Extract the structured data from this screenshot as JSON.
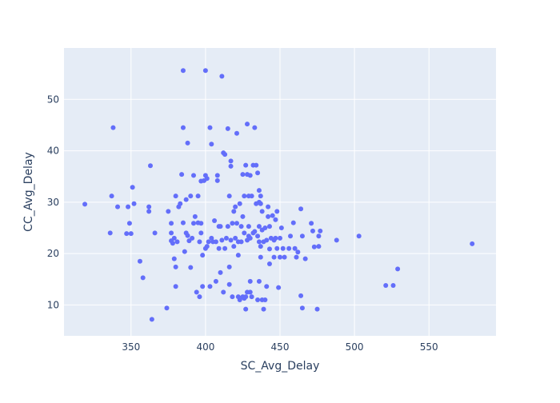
{
  "chart_data": {
    "type": "scatter",
    "title": "",
    "xlabel": "SC_Avg_Delay",
    "ylabel": "CC_Avg_Delay",
    "xlim": [
      305,
      595
    ],
    "ylim": [
      4,
      60
    ],
    "xticks": [
      350,
      400,
      450,
      500,
      550
    ],
    "yticks": [
      10,
      20,
      30,
      40,
      50
    ],
    "grid": true,
    "colors": {
      "marker": "#636efa",
      "plot_bg": "#e5ecf6",
      "grid": "#ffffff",
      "text": "#2a3f5f"
    },
    "points": [
      [
        319,
        29.6
      ],
      [
        336,
        24.0
      ],
      [
        337,
        31.2
      ],
      [
        338,
        44.5
      ],
      [
        341,
        29.1
      ],
      [
        347,
        23.9
      ],
      [
        348,
        29.1
      ],
      [
        349,
        25.9
      ],
      [
        350,
        23.9
      ],
      [
        351,
        32.9
      ],
      [
        352,
        29.7
      ],
      [
        356,
        18.5
      ],
      [
        358,
        15.3
      ],
      [
        362,
        29.1
      ],
      [
        362,
        28.2
      ],
      [
        363,
        37.1
      ],
      [
        364,
        7.2
      ],
      [
        366,
        24.0
      ],
      [
        374,
        9.4
      ],
      [
        375,
        28.2
      ],
      [
        377,
        25.9
      ],
      [
        377,
        24.0
      ],
      [
        377,
        22.5
      ],
      [
        378,
        22.0
      ],
      [
        379,
        19.0
      ],
      [
        379,
        23.0
      ],
      [
        380,
        31.2
      ],
      [
        380,
        13.6
      ],
      [
        380,
        17.4
      ],
      [
        381,
        22.3
      ],
      [
        382,
        29.1
      ],
      [
        383,
        29.7
      ],
      [
        384,
        35.4
      ],
      [
        385,
        44.5
      ],
      [
        385,
        26.0
      ],
      [
        385,
        55.6
      ],
      [
        386,
        20.4
      ],
      [
        387,
        24.0
      ],
      [
        387,
        30.5
      ],
      [
        388,
        23.5
      ],
      [
        388,
        41.5
      ],
      [
        389,
        22.5
      ],
      [
        390,
        17.3
      ],
      [
        390,
        31.2
      ],
      [
        391,
        23.0
      ],
      [
        392,
        25.9
      ],
      [
        392,
        35.2
      ],
      [
        393,
        27.2
      ],
      [
        394,
        12.5
      ],
      [
        395,
        31.2
      ],
      [
        395,
        26.0
      ],
      [
        396,
        11.6
      ],
      [
        396,
        22.3
      ],
      [
        397,
        34.1
      ],
      [
        397,
        24.0
      ],
      [
        397,
        25.9
      ],
      [
        398,
        13.6
      ],
      [
        398,
        19.7
      ],
      [
        399,
        34.2
      ],
      [
        400,
        35.2
      ],
      [
        400,
        55.6
      ],
      [
        400,
        21.0
      ],
      [
        401,
        34.6
      ],
      [
        401,
        21.4
      ],
      [
        402,
        22.3
      ],
      [
        403,
        44.5
      ],
      [
        403,
        13.6
      ],
      [
        404,
        41.3
      ],
      [
        404,
        23.0
      ],
      [
        405,
        22.3
      ],
      [
        406,
        26.4
      ],
      [
        407,
        14.6
      ],
      [
        407,
        22.3
      ],
      [
        408,
        35.2
      ],
      [
        408,
        34.2
      ],
      [
        409,
        25.3
      ],
      [
        409,
        21.0
      ],
      [
        410,
        25.3
      ],
      [
        410,
        16.3
      ],
      [
        411,
        54.5
      ],
      [
        411,
        22.6
      ],
      [
        412,
        39.6
      ],
      [
        412,
        12.5
      ],
      [
        413,
        39.3
      ],
      [
        413,
        21.0
      ],
      [
        414,
        23.0
      ],
      [
        415,
        25.3
      ],
      [
        415,
        44.3
      ],
      [
        416,
        31.2
      ],
      [
        416,
        17.4
      ],
      [
        416,
        14.0
      ],
      [
        417,
        38.0
      ],
      [
        417,
        37.0
      ],
      [
        417,
        22.6
      ],
      [
        418,
        25.9
      ],
      [
        418,
        11.6
      ],
      [
        419,
        28.2
      ],
      [
        419,
        21.4
      ],
      [
        420,
        29.1
      ],
      [
        420,
        23.0
      ],
      [
        421,
        43.4
      ],
      [
        421,
        25.9
      ],
      [
        422,
        22.3
      ],
      [
        422,
        19.7
      ],
      [
        422,
        11.6
      ],
      [
        423,
        29.7
      ],
      [
        423,
        11.0
      ],
      [
        424,
        25.3
      ],
      [
        424,
        22.3
      ],
      [
        425,
        27.2
      ],
      [
        425,
        35.4
      ],
      [
        425,
        11.6
      ],
      [
        426,
        31.2
      ],
      [
        426,
        11.3
      ],
      [
        426,
        24.0
      ],
      [
        427,
        37.2
      ],
      [
        427,
        9.2
      ],
      [
        427,
        11.6
      ],
      [
        428,
        45.2
      ],
      [
        428,
        35.4
      ],
      [
        428,
        22.6
      ],
      [
        428,
        12.5
      ],
      [
        429,
        31.2
      ],
      [
        429,
        25.3
      ],
      [
        429,
        23.4
      ],
      [
        430,
        35.2
      ],
      [
        430,
        23.0
      ],
      [
        430,
        14.6
      ],
      [
        430,
        12.5
      ],
      [
        431,
        31.2
      ],
      [
        431,
        11.6
      ],
      [
        432,
        37.2
      ],
      [
        432,
        24.0
      ],
      [
        433,
        44.5
      ],
      [
        433,
        24.3
      ],
      [
        434,
        37.2
      ],
      [
        434,
        29.7
      ],
      [
        435,
        35.7
      ],
      [
        435,
        23.4
      ],
      [
        435,
        11.0
      ],
      [
        436,
        32.3
      ],
      [
        436,
        30.0
      ],
      [
        436,
        25.3
      ],
      [
        436,
        22.3
      ],
      [
        436,
        14.6
      ],
      [
        437,
        31.2
      ],
      [
        437,
        29.7
      ],
      [
        437,
        21.4
      ],
      [
        437,
        19.3
      ],
      [
        438,
        28.2
      ],
      [
        438,
        24.6
      ],
      [
        438,
        11.0
      ],
      [
        439,
        22.3
      ],
      [
        439,
        9.2
      ],
      [
        440,
        25.0
      ],
      [
        440,
        11.0
      ],
      [
        441,
        13.6
      ],
      [
        441,
        22.6
      ],
      [
        442,
        29.1
      ],
      [
        442,
        27.2
      ],
      [
        443,
        25.3
      ],
      [
        443,
        20.9
      ],
      [
        443,
        18.0
      ],
      [
        444,
        23.0
      ],
      [
        445,
        27.4
      ],
      [
        446,
        22.6
      ],
      [
        446,
        19.3
      ],
      [
        447,
        26.6
      ],
      [
        447,
        23.0
      ],
      [
        448,
        28.2
      ],
      [
        448,
        21.0
      ],
      [
        449,
        13.4
      ],
      [
        450,
        23.0
      ],
      [
        450,
        19.3
      ],
      [
        451,
        25.0
      ],
      [
        452,
        21.0
      ],
      [
        453,
        19.3
      ],
      [
        456,
        21.0
      ],
      [
        457,
        23.4
      ],
      [
        459,
        26.0
      ],
      [
        460,
        21.0
      ],
      [
        461,
        19.3
      ],
      [
        462,
        20.3
      ],
      [
        464,
        28.7
      ],
      [
        464,
        11.8
      ],
      [
        465,
        23.4
      ],
      [
        465,
        9.4
      ],
      [
        467,
        19.0
      ],
      [
        471,
        25.9
      ],
      [
        472,
        24.4
      ],
      [
        473,
        21.3
      ],
      [
        475,
        9.2
      ],
      [
        476,
        21.4
      ],
      [
        476,
        23.4
      ],
      [
        477,
        24.4
      ],
      [
        488,
        22.6
      ],
      [
        503,
        23.4
      ],
      [
        521,
        13.8
      ],
      [
        526,
        13.8
      ],
      [
        529,
        17.0
      ],
      [
        579,
        21.9
      ]
    ]
  }
}
